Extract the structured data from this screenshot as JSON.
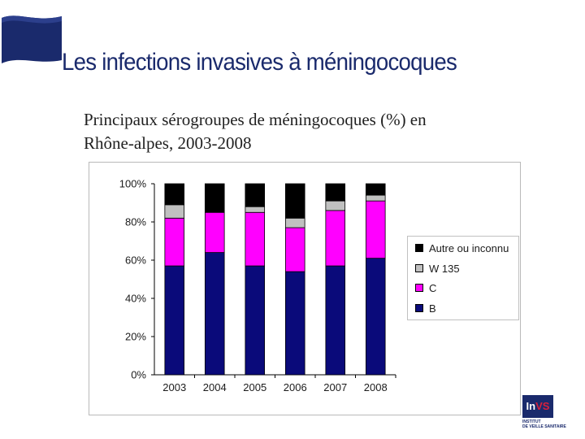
{
  "slide": {
    "title": "Les infections invasives à méningocoques",
    "subtitle_line1": "Principaux sérogroupes de méningocoques (%) en",
    "subtitle_line2": "Rhône-alpes, 2003-2008"
  },
  "colors": {
    "brand_blue": "#1a2a6c",
    "B": "#0a0a7a",
    "C": "#ff00ff",
    "W135": "#c0c0c0",
    "autre": "#000000"
  },
  "chart_data": {
    "type": "bar",
    "stacked": true,
    "title": "Principaux sérogroupes de méningocoques (%) en Rhône-alpes, 2003-2008",
    "categories": [
      "2003",
      "2004",
      "2005",
      "2006",
      "2007",
      "2008"
    ],
    "series": [
      {
        "name": "B",
        "values": [
          57,
          64,
          57,
          54,
          57,
          61
        ]
      },
      {
        "name": "C",
        "values": [
          25,
          21,
          28,
          23,
          29,
          30
        ]
      },
      {
        "name": "W 135",
        "values": [
          7,
          0,
          3,
          5,
          5,
          3
        ]
      },
      {
        "name": "Autre ou inconnu",
        "values": [
          11,
          15,
          12,
          18,
          9,
          6
        ]
      }
    ],
    "legend_order": [
      "Autre ou inconnu",
      "W 135",
      "C",
      "B"
    ],
    "y_tick_labels": [
      "0%",
      "20%",
      "40%",
      "60%",
      "80%",
      "100%"
    ],
    "ylim": [
      0,
      100
    ],
    "xlabel": "",
    "ylabel": "",
    "legend_position": "right",
    "grid": false
  },
  "logo": {
    "mark_left": "In",
    "mark_right": "VS",
    "line1": "INSTITUT",
    "line2": "DE VEILLE SANITAIRE"
  }
}
